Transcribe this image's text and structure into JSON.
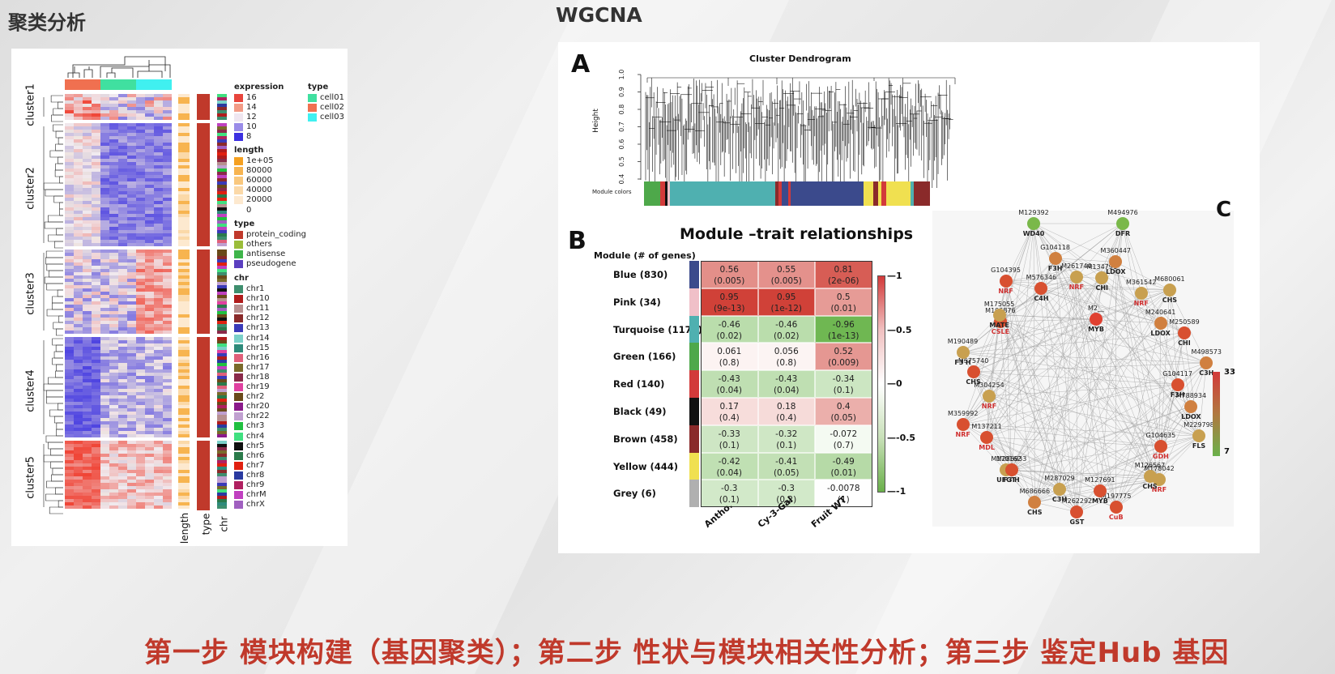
{
  "left_title": "聚类分析",
  "right_title": "WGCNA",
  "footer": "第一步 模块构建（基因聚类）；第二步 性状与模块相关性分析；第三步 鉴定Hub 基因",
  "heatmap": {
    "clusters": [
      "cluster1",
      "cluster2",
      "cluster3",
      "cluster4",
      "cluster5"
    ],
    "annot_labels": [
      "length",
      "type",
      "chr"
    ],
    "legend": {
      "expression": {
        "title": "expression",
        "items": [
          {
            "label": "16",
            "color": "#e8453c"
          },
          {
            "label": "14",
            "color": "#f29b86"
          },
          {
            "label": "12",
            "color": "#efe6f0"
          },
          {
            "label": "10",
            "color": "#9a8ce8"
          },
          {
            "label": "8",
            "color": "#3b2fe0"
          }
        ]
      },
      "length": {
        "title": "length",
        "items": [
          {
            "label": "1e+05",
            "color": "#f5a020"
          },
          {
            "label": "80000",
            "color": "#f7b450"
          },
          {
            "label": "60000",
            "color": "#f9c87e"
          },
          {
            "label": "40000",
            "color": "#fbd9a8"
          },
          {
            "label": "20000",
            "color": "#fde9cf"
          },
          {
            "label": "0",
            "color": "#ffffff"
          }
        ]
      },
      "gene_type": {
        "title": "type",
        "items": [
          {
            "label": "protein_coding",
            "color": "#c0392b"
          },
          {
            "label": "others",
            "color": "#9bbd3a"
          },
          {
            "label": "antisense",
            "color": "#3fb54a"
          },
          {
            "label": "pseudogene",
            "color": "#5b3fc0"
          }
        ]
      },
      "chr": {
        "title": "chr",
        "items": [
          {
            "label": "chr1",
            "color": "#3e8e6e"
          },
          {
            "label": "chr10",
            "color": "#b01c1c"
          },
          {
            "label": "chr11",
            "color": "#b79090"
          },
          {
            "label": "chr12",
            "color": "#8a2a2a"
          },
          {
            "label": "chr13",
            "color": "#3a3ab8"
          },
          {
            "label": "chr14",
            "color": "#7ad0c8"
          },
          {
            "label": "chr15",
            "color": "#2e8a7a"
          },
          {
            "label": "chr16",
            "color": "#e0607a"
          },
          {
            "label": "chr17",
            "color": "#7a6a2a"
          },
          {
            "label": "chr18",
            "color": "#8a2a4a"
          },
          {
            "label": "chr19",
            "color": "#e040a0"
          },
          {
            "label": "chr2",
            "color": "#6a4a1a"
          },
          {
            "label": "chr20",
            "color": "#8a1a8a"
          },
          {
            "label": "chr22",
            "color": "#c0a0d0"
          },
          {
            "label": "chr3",
            "color": "#20c040"
          },
          {
            "label": "chr4",
            "color": "#40e080"
          },
          {
            "label": "chr5",
            "color": "#101010"
          },
          {
            "label": "chr6",
            "color": "#2a7a4a"
          },
          {
            "label": "chr7",
            "color": "#e02010"
          },
          {
            "label": "chr8",
            "color": "#2a3aa0"
          },
          {
            "label": "chr9",
            "color": "#b02060"
          },
          {
            "label": "chrM",
            "color": "#c040c0"
          },
          {
            "label": "chrX",
            "color": "#a060c0"
          }
        ]
      },
      "sample_type": {
        "title": "type",
        "items": [
          {
            "label": "cell01",
            "color": "#40e0a0"
          },
          {
            "label": "cell02",
            "color": "#f07050"
          },
          {
            "label": "cell03",
            "color": "#40f0f0"
          }
        ]
      }
    }
  },
  "wgcna": {
    "panel_a": {
      "letter": "A",
      "title": "Cluster Dendrogram",
      "ylabel": "Height",
      "yticks": [
        "1.0",
        "0.9",
        "0.8",
        "0.7",
        "0.6",
        "0.5",
        "0.4"
      ],
      "bar_label": "Module colors"
    },
    "panel_b": {
      "letter": "B",
      "title": "Module –trait relationships",
      "header": "Module (# of genes)",
      "traits": [
        "Antho.",
        "Cy-3-Gal",
        "Fruit WT"
      ],
      "scale_ticks": [
        "1",
        "0.5",
        "0",
        "-0.5",
        "-1"
      ],
      "modules": [
        {
          "name": "Blue (830)",
          "color": "#3b4a8c",
          "vals": [
            "0.56",
            "0.55",
            "0.81"
          ],
          "p": [
            "(0.005)",
            "(0.005)",
            "(2e-06)"
          ]
        },
        {
          "name": "Pink (34)",
          "color": "#f0c0c8",
          "vals": [
            "0.95",
            "0.95",
            "0.5"
          ],
          "p": [
            "(9e-13)",
            "(1e-12)",
            "(0.01)"
          ]
        },
        {
          "name": "Turquoise (1172)",
          "color": "#4fb0b0",
          "vals": [
            "-0.46",
            "-0.46",
            "-0.96"
          ],
          "p": [
            "(0.02)",
            "(0.02)",
            "(1e-13)"
          ]
        },
        {
          "name": "Green (166)",
          "color": "#4ea84a",
          "vals": [
            "0.061",
            "0.056",
            "0.52"
          ],
          "p": [
            "(0.8)",
            "(0.8)",
            "(0.009)"
          ]
        },
        {
          "name": "Red (140)",
          "color": "#d23a3a",
          "vals": [
            "-0.43",
            "-0.43",
            "-0.34"
          ],
          "p": [
            "(0.04)",
            "(0.04)",
            "(0.1)"
          ]
        },
        {
          "name": "Black (49)",
          "color": "#111111",
          "vals": [
            "0.17",
            "0.18",
            "0.4"
          ],
          "p": [
            "(0.4)",
            "(0.4)",
            "(0.05)"
          ]
        },
        {
          "name": "Brown (458)",
          "color": "#8a2a2a",
          "vals": [
            "-0.33",
            "-0.32",
            "-0.072"
          ],
          "p": [
            "(0.1)",
            "(0.1)",
            "(0.7)"
          ]
        },
        {
          "name": "Yellow (444)",
          "color": "#f0e050",
          "vals": [
            "-0.42",
            "-0.41",
            "-0.49"
          ],
          "p": [
            "(0.04)",
            "(0.05)",
            "(0.01)"
          ]
        },
        {
          "name": "Grey (6)",
          "color": "#b0b0b0",
          "vals": [
            "-0.3",
            "-0.3",
            "-0.0078"
          ],
          "p": [
            "(0.1)",
            "(0.2)",
            "(1)"
          ]
        }
      ]
    },
    "panel_c": {
      "letter": "C",
      "scale": [
        "33",
        "7"
      ],
      "nodes": [
        {
          "id": "M129392",
          "fn": "WD40",
          "fn_color": "#222"
        },
        {
          "id": "M494976",
          "fn": "DFR",
          "fn_color": "#222"
        },
        {
          "id": "M134791",
          "fn": "CHI",
          "fn_color": "#222"
        },
        {
          "id": "M360447",
          "fn": "LDOX",
          "fn_color": "#222"
        },
        {
          "id": "M361542",
          "fn": "NRF",
          "fn_color": "#d03030"
        },
        {
          "id": "M680061",
          "fn": "CHS",
          "fn_color": "#222"
        },
        {
          "id": "M240641",
          "fn": "LDOX",
          "fn_color": "#222"
        },
        {
          "id": "M250589",
          "fn": "CHI",
          "fn_color": "#222"
        },
        {
          "id": "M498573",
          "fn": "C3H",
          "fn_color": "#222"
        },
        {
          "id": "G104117",
          "fn": "F3H",
          "fn_color": "#222"
        },
        {
          "id": "M788934",
          "fn": "LDOX",
          "fn_color": "#222"
        },
        {
          "id": "M229798",
          "fn": "FLS",
          "fn_color": "#222"
        },
        {
          "id": "G104635",
          "fn": "GDH",
          "fn_color": "#d03030"
        },
        {
          "id": "M178042",
          "fn": "NRF",
          "fn_color": "#d03030"
        },
        {
          "id": "M126567",
          "fn": "CHS",
          "fn_color": "#222"
        },
        {
          "id": "M197775",
          "fn": "CuB",
          "fn_color": "#d03030"
        },
        {
          "id": "M127691",
          "fn": "MYB",
          "fn_color": "#222"
        },
        {
          "id": "M262292",
          "fn": "GST",
          "fn_color": "#222"
        },
        {
          "id": "M287029",
          "fn": "C3H",
          "fn_color": "#222"
        },
        {
          "id": "M686666",
          "fn": "CHS",
          "fn_color": "#222"
        },
        {
          "id": "M170162",
          "fn": "UFGT",
          "fn_color": "#222"
        },
        {
          "id": "M286933",
          "fn": "F3'H",
          "fn_color": "#222"
        },
        {
          "id": "M137211",
          "fn": "MDL",
          "fn_color": "#d03030"
        },
        {
          "id": "M359992",
          "fn": "NRF",
          "fn_color": "#d03030"
        },
        {
          "id": "M304254",
          "fn": "NRF",
          "fn_color": "#d03030"
        },
        {
          "id": "M575740",
          "fn": "CHS",
          "fn_color": "#222"
        },
        {
          "id": "M190489",
          "fn": "F3'H",
          "fn_color": "#222"
        },
        {
          "id": "M196876",
          "fn": "CSLE",
          "fn_color": "#d03030"
        },
        {
          "id": "M175055",
          "fn": "MATE",
          "fn_color": "#222"
        },
        {
          "id": "G104395",
          "fn": "NRF",
          "fn_color": "#d03030"
        },
        {
          "id": "M576346",
          "fn": "C4H",
          "fn_color": "#222"
        },
        {
          "id": "G104118",
          "fn": "F3H",
          "fn_color": "#222"
        },
        {
          "id": "M261744",
          "fn": "NRF",
          "fn_color": "#d03030"
        },
        {
          "id": "M2__",
          "fn": "MYB",
          "fn_color": "#222"
        }
      ]
    }
  }
}
